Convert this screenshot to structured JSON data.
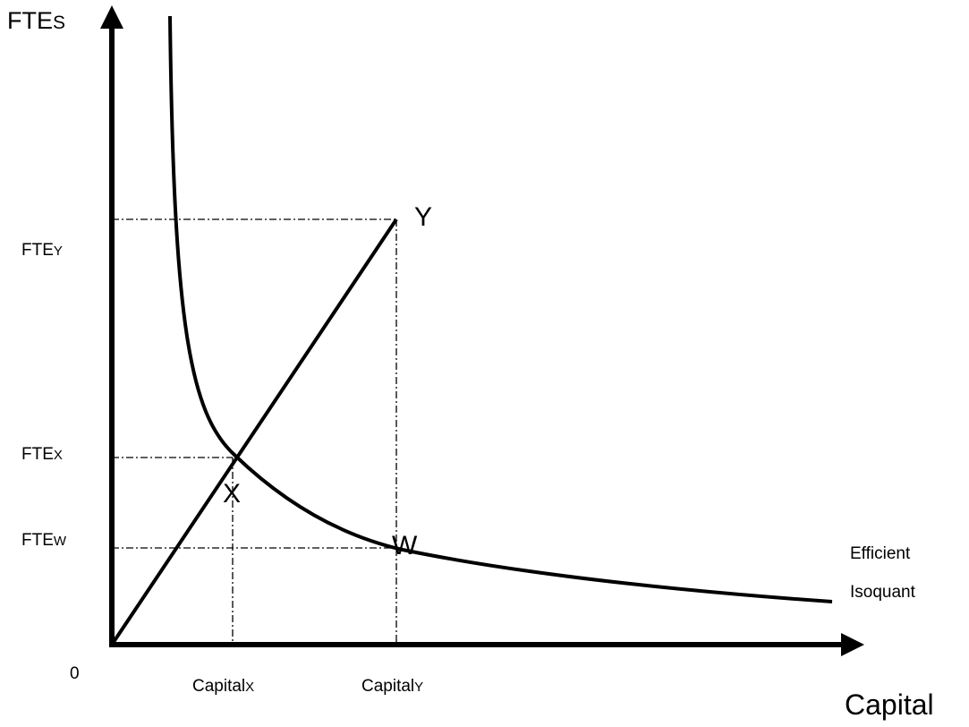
{
  "axes": {
    "y_label": {
      "main": "FTE",
      "sub": "S"
    },
    "x_label": "Capital",
    "origin": "0"
  },
  "y_ticks": [
    {
      "main": "FTE",
      "sub": "Y"
    },
    {
      "main": "FTE",
      "sub": "X"
    },
    {
      "main": "FTE",
      "sub": "W"
    }
  ],
  "x_ticks": [
    {
      "main": "Capital",
      "sub": "X"
    },
    {
      "main": "Capital",
      "sub": "Y"
    }
  ],
  "points": [
    "Y",
    "X",
    "W"
  ],
  "curve_label": [
    "Efficient",
    "Isoquant"
  ]
}
